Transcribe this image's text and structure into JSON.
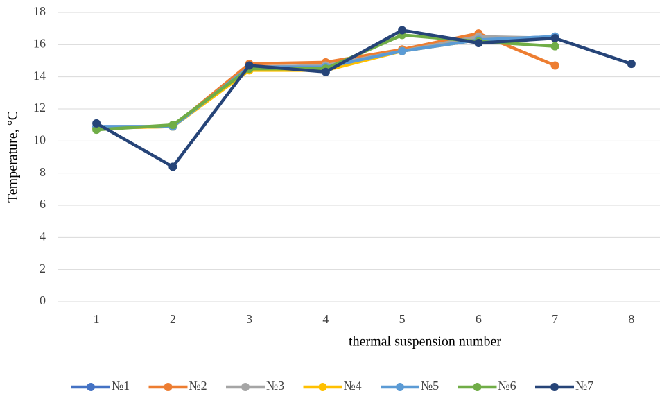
{
  "chart_data": {
    "type": "line",
    "x_label": "thermal suspension number",
    "y_label": "Temperature, °C",
    "categories": [
      "1",
      "2",
      "3",
      "4",
      "5",
      "6",
      "7",
      "8"
    ],
    "series": [
      {
        "name": "№1",
        "color": "#4472c4",
        "values": [
          10.9,
          10.9,
          14.6,
          14.6,
          15.6,
          16.3,
          16.5,
          null
        ]
      },
      {
        "name": "№2",
        "color": "#ed7d31",
        "values": [
          10.8,
          10.9,
          14.8,
          14.9,
          15.7,
          16.7,
          14.7,
          null
        ]
      },
      {
        "name": "№3",
        "color": "#a5a5a5",
        "values": [
          10.8,
          10.9,
          14.6,
          14.7,
          15.6,
          16.5,
          16.4,
          null
        ]
      },
      {
        "name": "№4",
        "color": "#ffc000",
        "values": [
          10.8,
          10.9,
          14.4,
          14.4,
          15.6,
          16.3,
          16.4,
          null
        ]
      },
      {
        "name": "№5",
        "color": "#5b9bd5",
        "values": [
          10.9,
          10.9,
          14.6,
          14.6,
          15.6,
          16.3,
          16.5,
          null
        ]
      },
      {
        "name": "№6",
        "color": "#70ad47",
        "values": [
          10.7,
          11.0,
          14.5,
          14.5,
          16.6,
          16.2,
          15.9,
          null
        ]
      },
      {
        "name": "№7",
        "color": "#264478",
        "values": [
          11.1,
          8.4,
          14.7,
          14.3,
          16.9,
          16.1,
          16.4,
          14.8
        ]
      }
    ],
    "ylim": [
      0,
      18
    ],
    "yticks": [
      0,
      2,
      4,
      6,
      8,
      10,
      12,
      14,
      16,
      18
    ],
    "grid": true,
    "legend": "bottom"
  }
}
